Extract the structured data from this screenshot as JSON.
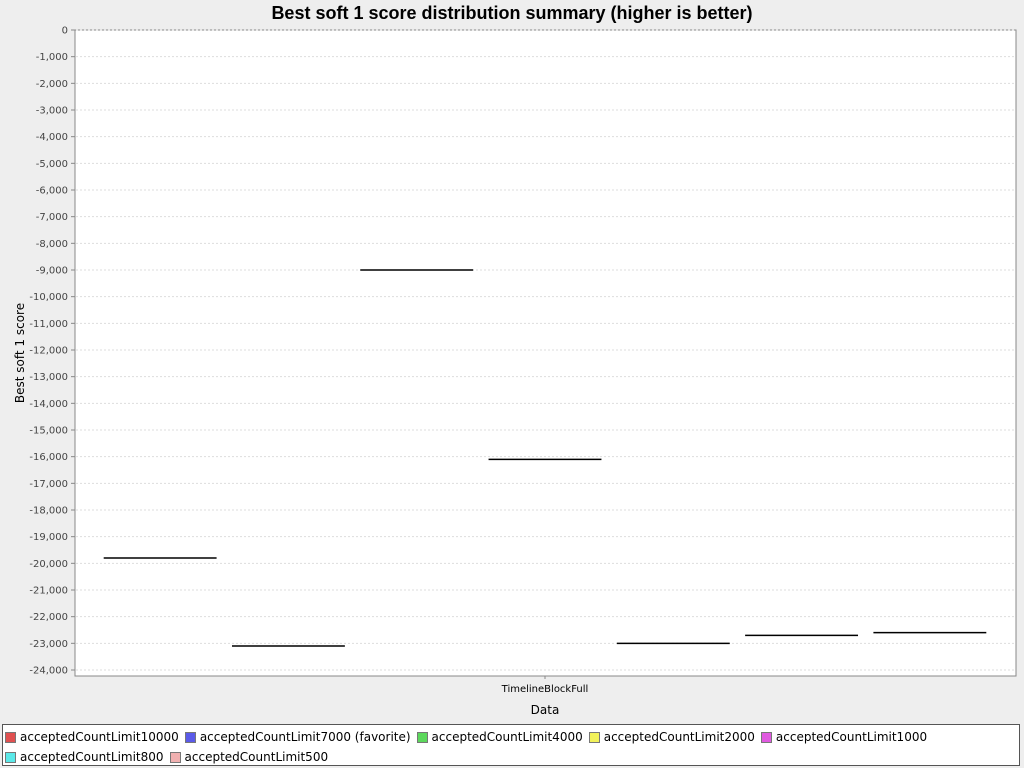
{
  "chart_data": {
    "type": "boxplot",
    "title": "Best soft 1 score distribution summary (higher is better)",
    "xlabel": "Data",
    "ylabel": "Best soft 1 score",
    "ylim": [
      -24000,
      0
    ],
    "yticks": [
      0,
      -1000,
      -2000,
      -3000,
      -4000,
      -5000,
      -6000,
      -7000,
      -8000,
      -9000,
      -10000,
      -11000,
      -12000,
      -13000,
      -14000,
      -15000,
      -16000,
      -17000,
      -18000,
      -19000,
      -20000,
      -21000,
      -22000,
      -23000,
      -24000
    ],
    "ytick_labels": [
      "0",
      "-1,000",
      "-2,000",
      "-3,000",
      "-4,000",
      "-5,000",
      "-6,000",
      "-7,000",
      "-8,000",
      "-9,000",
      "-10,000",
      "-11,000",
      "-12,000",
      "-13,000",
      "-14,000",
      "-15,000",
      "-16,000",
      "-17,000",
      "-18,000",
      "-19,000",
      "-20,000",
      "-21,000",
      "-22,000",
      "-23,000",
      "-24,000"
    ],
    "categories": [
      "TimelineBlockFull"
    ],
    "grid": true,
    "legend_position": "bottom",
    "series": [
      {
        "name": "acceptedCountLimit10000",
        "color": "#e05050",
        "values": [
          -19800
        ]
      },
      {
        "name": "acceptedCountLimit7000 (favorite)",
        "color": "#5a5ae8",
        "values": [
          -23100
        ]
      },
      {
        "name": "acceptedCountLimit4000",
        "color": "#5cd85c",
        "values": [
          -9000
        ]
      },
      {
        "name": "acceptedCountLimit2000",
        "color": "#f2f25a",
        "values": [
          -16100
        ]
      },
      {
        "name": "acceptedCountLimit1000",
        "color": "#e05ae0",
        "values": [
          -23000
        ]
      },
      {
        "name": "acceptedCountLimit800",
        "color": "#5ae8e8",
        "values": [
          -22700
        ]
      },
      {
        "name": "acceptedCountLimit500",
        "color": "#f0b0b0",
        "values": [
          -22600
        ]
      }
    ]
  }
}
